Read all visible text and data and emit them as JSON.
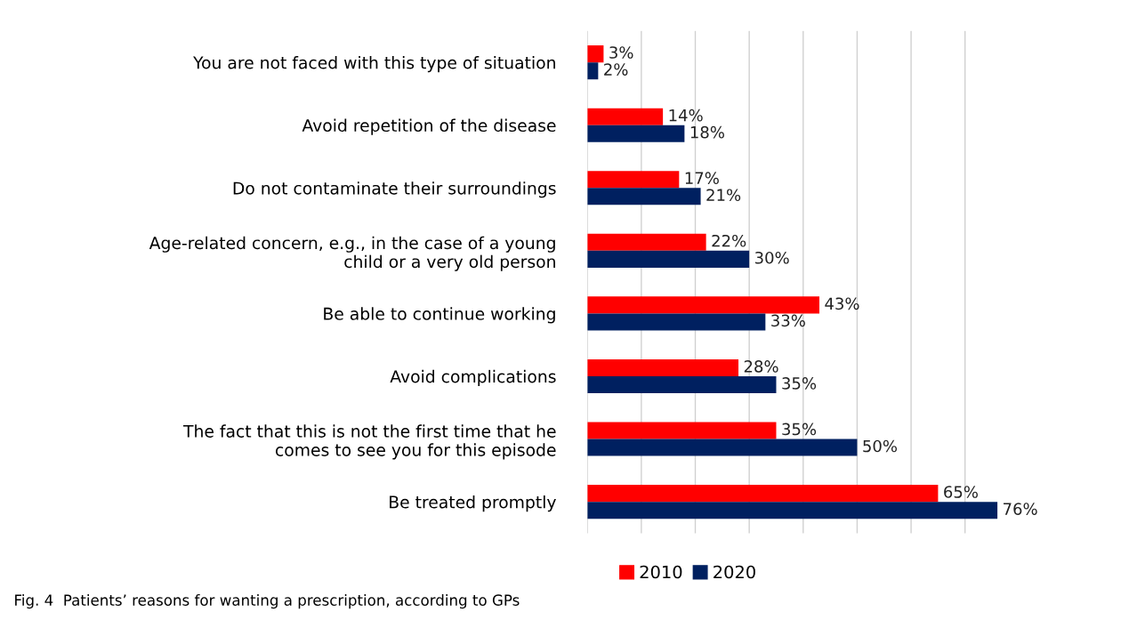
{
  "chart_data": {
    "type": "bar",
    "orientation": "horizontal",
    "categories": [
      "You are not faced with this type of situation",
      "Avoid repetition of the disease",
      "Do not contaminate their surroundings",
      "Age-related concern, e.g., in the case of a young\nchild or a very old person",
      "Be able to continue working",
      "Avoid complications",
      "The fact that this is not the first time that he\ncomes to see you for this episode",
      "Be treated promptly"
    ],
    "series": [
      {
        "name": "2010",
        "color": "#ff0000",
        "values": [
          3,
          14,
          17,
          22,
          43,
          28,
          35,
          65
        ],
        "value_labels": [
          "3%",
          "14%",
          "17%",
          "22%",
          "43%",
          "28%",
          "35%",
          "65%"
        ]
      },
      {
        "name": "2020",
        "color": "#002060",
        "values": [
          2,
          18,
          21,
          30,
          33,
          35,
          50,
          76
        ],
        "value_labels": [
          "2%",
          "18%",
          "21%",
          "30%",
          "33%",
          "35%",
          "50%",
          "76%"
        ]
      }
    ],
    "grid": "x",
    "legend": "bottom",
    "annotations": [
      "Fig. 4  Patients’ reasons for wanting a prescription, according to GPs"
    ]
  }
}
